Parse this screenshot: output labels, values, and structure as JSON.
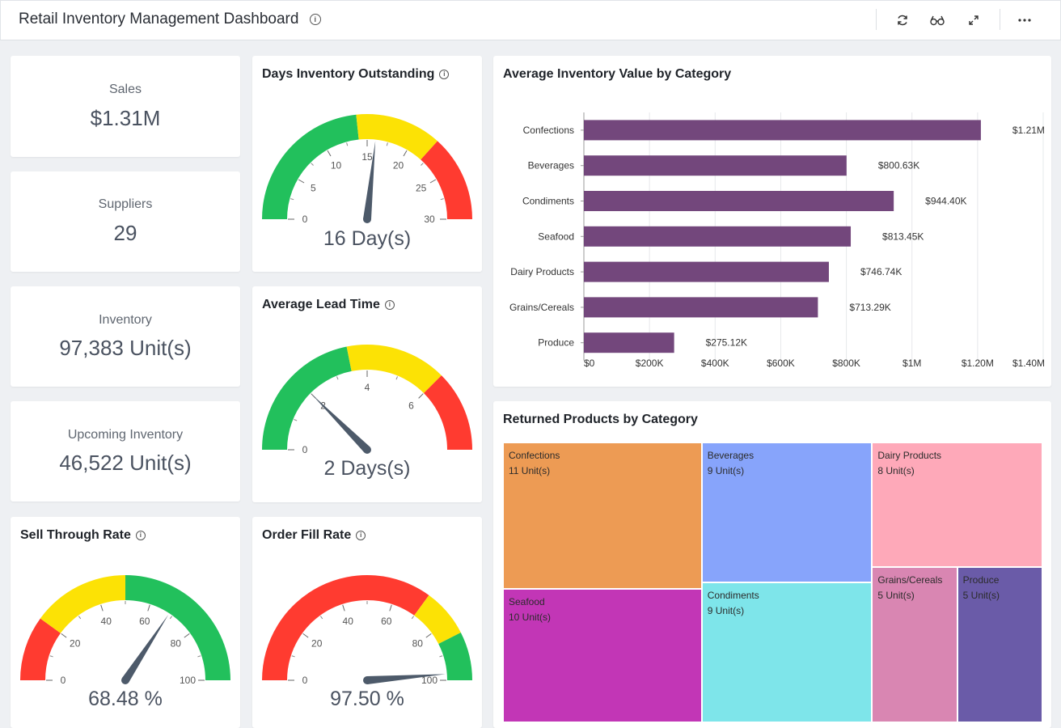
{
  "header": {
    "title": "Retail Inventory Management Dashboard"
  },
  "kpis": {
    "sales": {
      "label": "Sales",
      "value": "$1.31M"
    },
    "suppliers": {
      "label": "Suppliers",
      "value": "29"
    },
    "inventory": {
      "label": "Inventory",
      "value": "97,383 Unit(s)"
    },
    "upcoming": {
      "label": "Upcoming Inventory",
      "value": "46,522 Unit(s)"
    }
  },
  "gauges": {
    "dio": {
      "title": "Days Inventory Outstanding",
      "value_text": "16 Day(s)",
      "value": 16,
      "min": 0,
      "max": 30,
      "ticks": [
        "0",
        "5",
        "10",
        "15",
        "20",
        "25",
        "30"
      ],
      "bands": [
        {
          "from": 0,
          "to": 14,
          "color": "#22c05c"
        },
        {
          "from": 14,
          "to": 22,
          "color": "#fce205"
        },
        {
          "from": 22,
          "to": 30,
          "color": "#ff3b30"
        }
      ]
    },
    "lead": {
      "title": "Average Lead Time",
      "value_text": "2 Days(s)",
      "value": 2,
      "min": 0,
      "max": 8,
      "ticks": [
        "0",
        "2",
        "4",
        "6"
      ],
      "bands": [
        {
          "from": 0,
          "to": 3.5,
          "color": "#22c05c"
        },
        {
          "from": 3.5,
          "to": 6,
          "color": "#fce205"
        },
        {
          "from": 6,
          "to": 8,
          "color": "#ff3b30"
        }
      ]
    },
    "sell": {
      "title": "Sell Through Rate",
      "value_text": "68.48 %",
      "value": 68.48,
      "min": 0,
      "max": 100,
      "ticks": [
        "0",
        "20",
        "40",
        "60",
        "80",
        "100"
      ],
      "bands": [
        {
          "from": 0,
          "to": 20,
          "color": "#ff3b30"
        },
        {
          "from": 20,
          "to": 50,
          "color": "#fce205"
        },
        {
          "from": 50,
          "to": 100,
          "color": "#22c05c"
        }
      ]
    },
    "fill": {
      "title": "Order Fill Rate",
      "value_text": "97.50 %",
      "value": 97.5,
      "min": 0,
      "max": 100,
      "ticks": [
        "0",
        "20",
        "40",
        "60",
        "80",
        "100"
      ],
      "bands": [
        {
          "from": 0,
          "to": 70,
          "color": "#ff3b30"
        },
        {
          "from": 70,
          "to": 85,
          "color": "#fce205"
        },
        {
          "from": 85,
          "to": 100,
          "color": "#22c05c"
        }
      ]
    }
  },
  "bar_chart": {
    "title": "Average Inventory Value by Category",
    "chart_data": {
      "type": "bar",
      "orientation": "horizontal",
      "categories": [
        "Confections",
        "Beverages",
        "Condiments",
        "Seafood",
        "Dairy Products",
        "Grains/Cereals",
        "Produce"
      ],
      "values": [
        1210000,
        800630,
        944400,
        813450,
        746740,
        713290,
        275120
      ],
      "value_labels": [
        "$1.21M",
        "$800.63K",
        "$944.40K",
        "$813.45K",
        "$746.74K",
        "$713.29K",
        "$275.12K"
      ],
      "xlim": [
        0,
        1400000
      ],
      "xticks": [
        "$0",
        "$200K",
        "$400K",
        "$600K",
        "$800K",
        "$1M",
        "$1.20M",
        "$1.40M"
      ],
      "color": "#73477c",
      "grid": true
    }
  },
  "treemap": {
    "title": "Returned Products by Category",
    "chart_data": {
      "type": "treemap",
      "items": [
        {
          "name": "Confections",
          "value": 11,
          "label": "11 Unit(s)",
          "color": "#ed9b54"
        },
        {
          "name": "Seafood",
          "value": 10,
          "label": "10 Unit(s)",
          "color": "#c236b6"
        },
        {
          "name": "Beverages",
          "value": 9,
          "label": "9 Unit(s)",
          "color": "#87a4fb"
        },
        {
          "name": "Condiments",
          "value": 9,
          "label": "9 Unit(s)",
          "color": "#7ee5ea"
        },
        {
          "name": "Dairy Products",
          "value": 8,
          "label": "8 Unit(s)",
          "color": "#fea9b9"
        },
        {
          "name": "Grains/Cereals",
          "value": 5,
          "label": "5 Unit(s)",
          "color": "#d986b2"
        },
        {
          "name": "Produce",
          "value": 5,
          "label": "5 Unit(s)",
          "color": "#6a5ba8"
        }
      ]
    }
  }
}
